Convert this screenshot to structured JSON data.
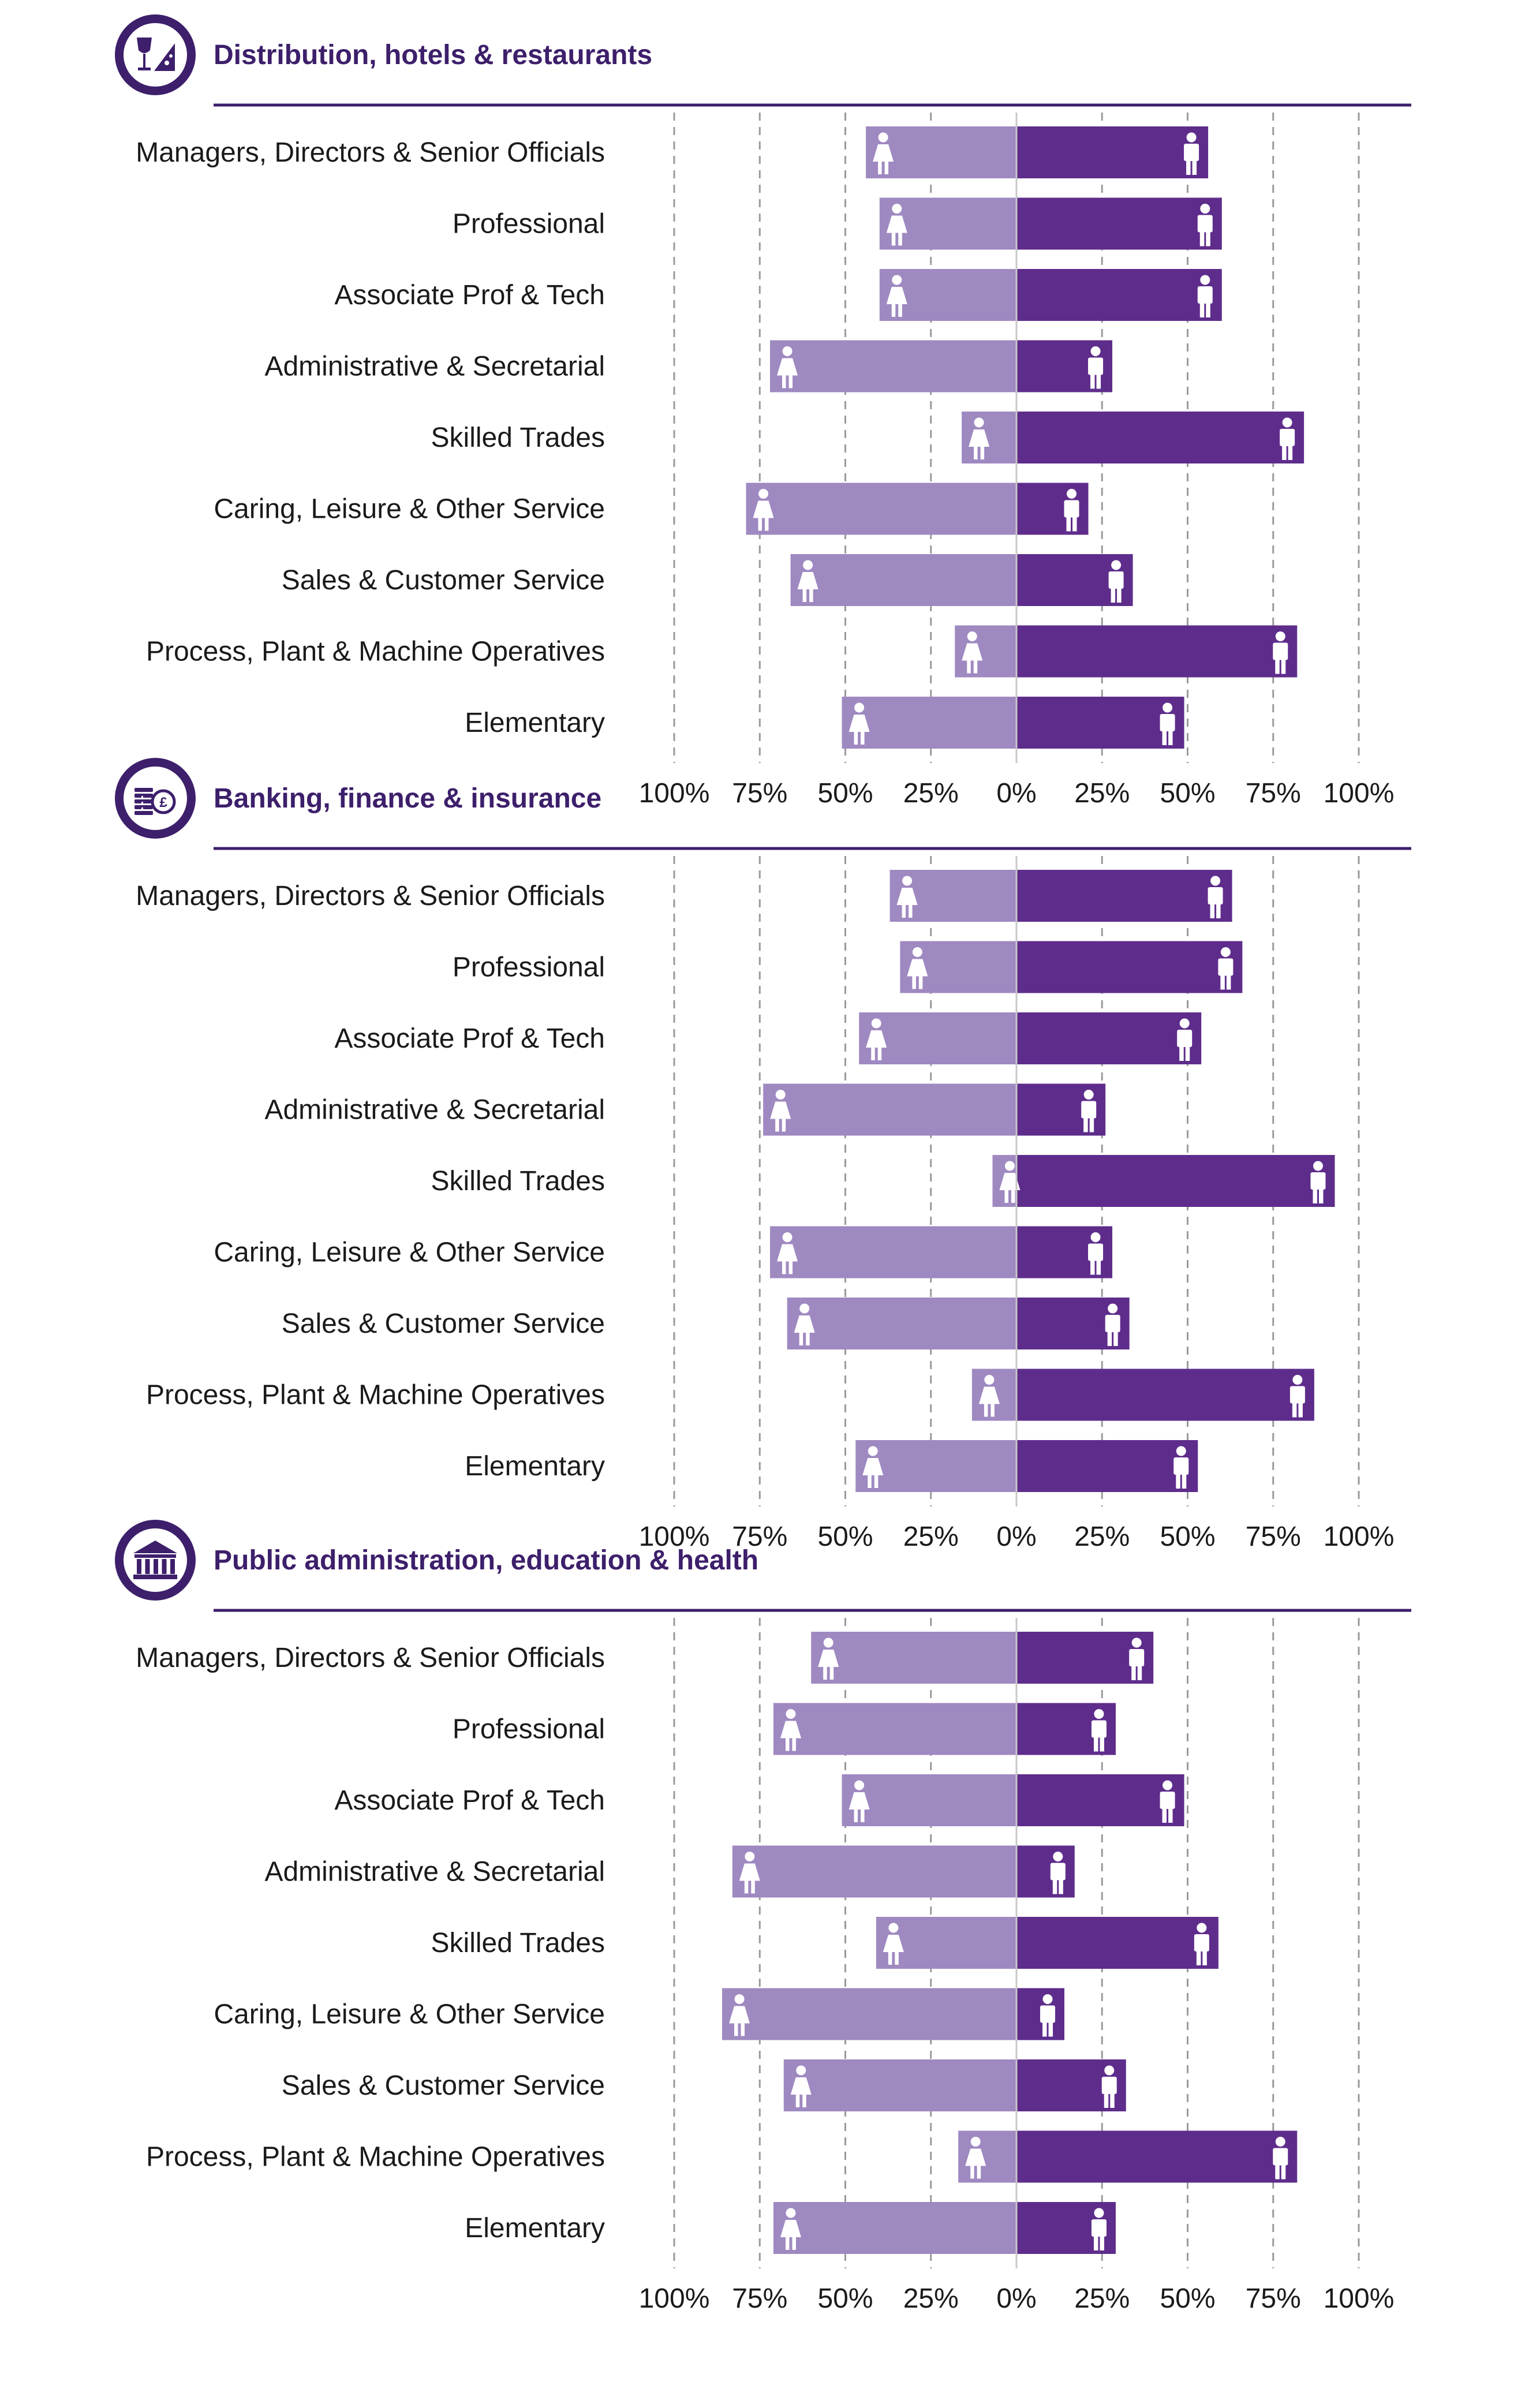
{
  "colors": {
    "female_bar": "#9f89c1",
    "male_bar": "#5e2d8c",
    "title": "#3d1f6b",
    "icon_circle": "#3d1f6b",
    "grid": "#9a9a9a"
  },
  "chart_data": [
    {
      "type": "bar",
      "orientation": "diverging-horizontal",
      "title": "Distribution, hotels & restaurants",
      "icon": "wine-pizza-icon",
      "categories": [
        "Managers, Directors & Senior Officials",
        "Professional",
        "Associate Prof & Tech",
        "Administrative & Secretarial",
        "Skilled Trades",
        "Caring, Leisure & Other Service",
        "Sales & Customer Service",
        "Process, Plant & Machine Operatives",
        "Elementary"
      ],
      "series": [
        {
          "values": [
            44,
            40,
            40,
            72,
            16,
            79,
            66,
            18,
            51
          ],
          "color": "#9f89c1",
          "marker": "female-icon",
          "direction": "left"
        },
        {
          "values": [
            56,
            60,
            60,
            28,
            84,
            21,
            34,
            82,
            49
          ],
          "color": "#5e2d8c",
          "marker": "male-icon",
          "direction": "right"
        }
      ],
      "xticks": [
        "100%",
        "75%",
        "50%",
        "25%",
        "0%",
        "25%",
        "50%",
        "75%",
        "100%"
      ],
      "xlim": [
        -100,
        100
      ],
      "grid": true
    },
    {
      "type": "bar",
      "orientation": "diverging-horizontal",
      "title": "Banking, finance & insurance",
      "icon": "coins-pound-icon",
      "categories": [
        "Managers, Directors & Senior Officials",
        "Professional",
        "Associate Prof & Tech",
        "Administrative & Secretarial",
        "Skilled Trades",
        "Caring, Leisure & Other Service",
        "Sales & Customer Service",
        "Process, Plant & Machine Operatives",
        "Elementary"
      ],
      "series": [
        {
          "values": [
            37,
            34,
            46,
            74,
            7,
            72,
            67,
            13,
            47
          ],
          "color": "#9f89c1",
          "marker": "female-icon",
          "direction": "left"
        },
        {
          "values": [
            63,
            66,
            54,
            26,
            93,
            28,
            33,
            87,
            53
          ],
          "color": "#5e2d8c",
          "marker": "male-icon",
          "direction": "right"
        }
      ],
      "xticks": [
        "100%",
        "75%",
        "50%",
        "25%",
        "0%",
        "25%",
        "50%",
        "75%",
        "100%"
      ],
      "xlim": [
        -100,
        100
      ],
      "grid": true
    },
    {
      "type": "bar",
      "orientation": "diverging-horizontal",
      "title": "Public administration, education & health",
      "icon": "government-building-icon",
      "categories": [
        "Managers, Directors & Senior Officials",
        "Professional",
        "Associate Prof & Tech",
        "Administrative & Secretarial",
        "Skilled Trades",
        "Caring, Leisure & Other Service",
        "Sales & Customer Service",
        "Process, Plant & Machine Operatives",
        "Elementary"
      ],
      "series": [
        {
          "values": [
            60,
            71,
            51,
            83,
            41,
            86,
            68,
            17,
            71
          ],
          "color": "#9f89c1",
          "marker": "female-icon",
          "direction": "left"
        },
        {
          "values": [
            40,
            29,
            49,
            17,
            59,
            14,
            32,
            82,
            29
          ],
          "color": "#5e2d8c",
          "marker": "male-icon",
          "direction": "right"
        }
      ],
      "xticks": [
        "100%",
        "75%",
        "50%",
        "25%",
        "0%",
        "25%",
        "50%",
        "75%",
        "100%"
      ],
      "xlim": [
        -100,
        100
      ],
      "grid": true
    }
  ]
}
